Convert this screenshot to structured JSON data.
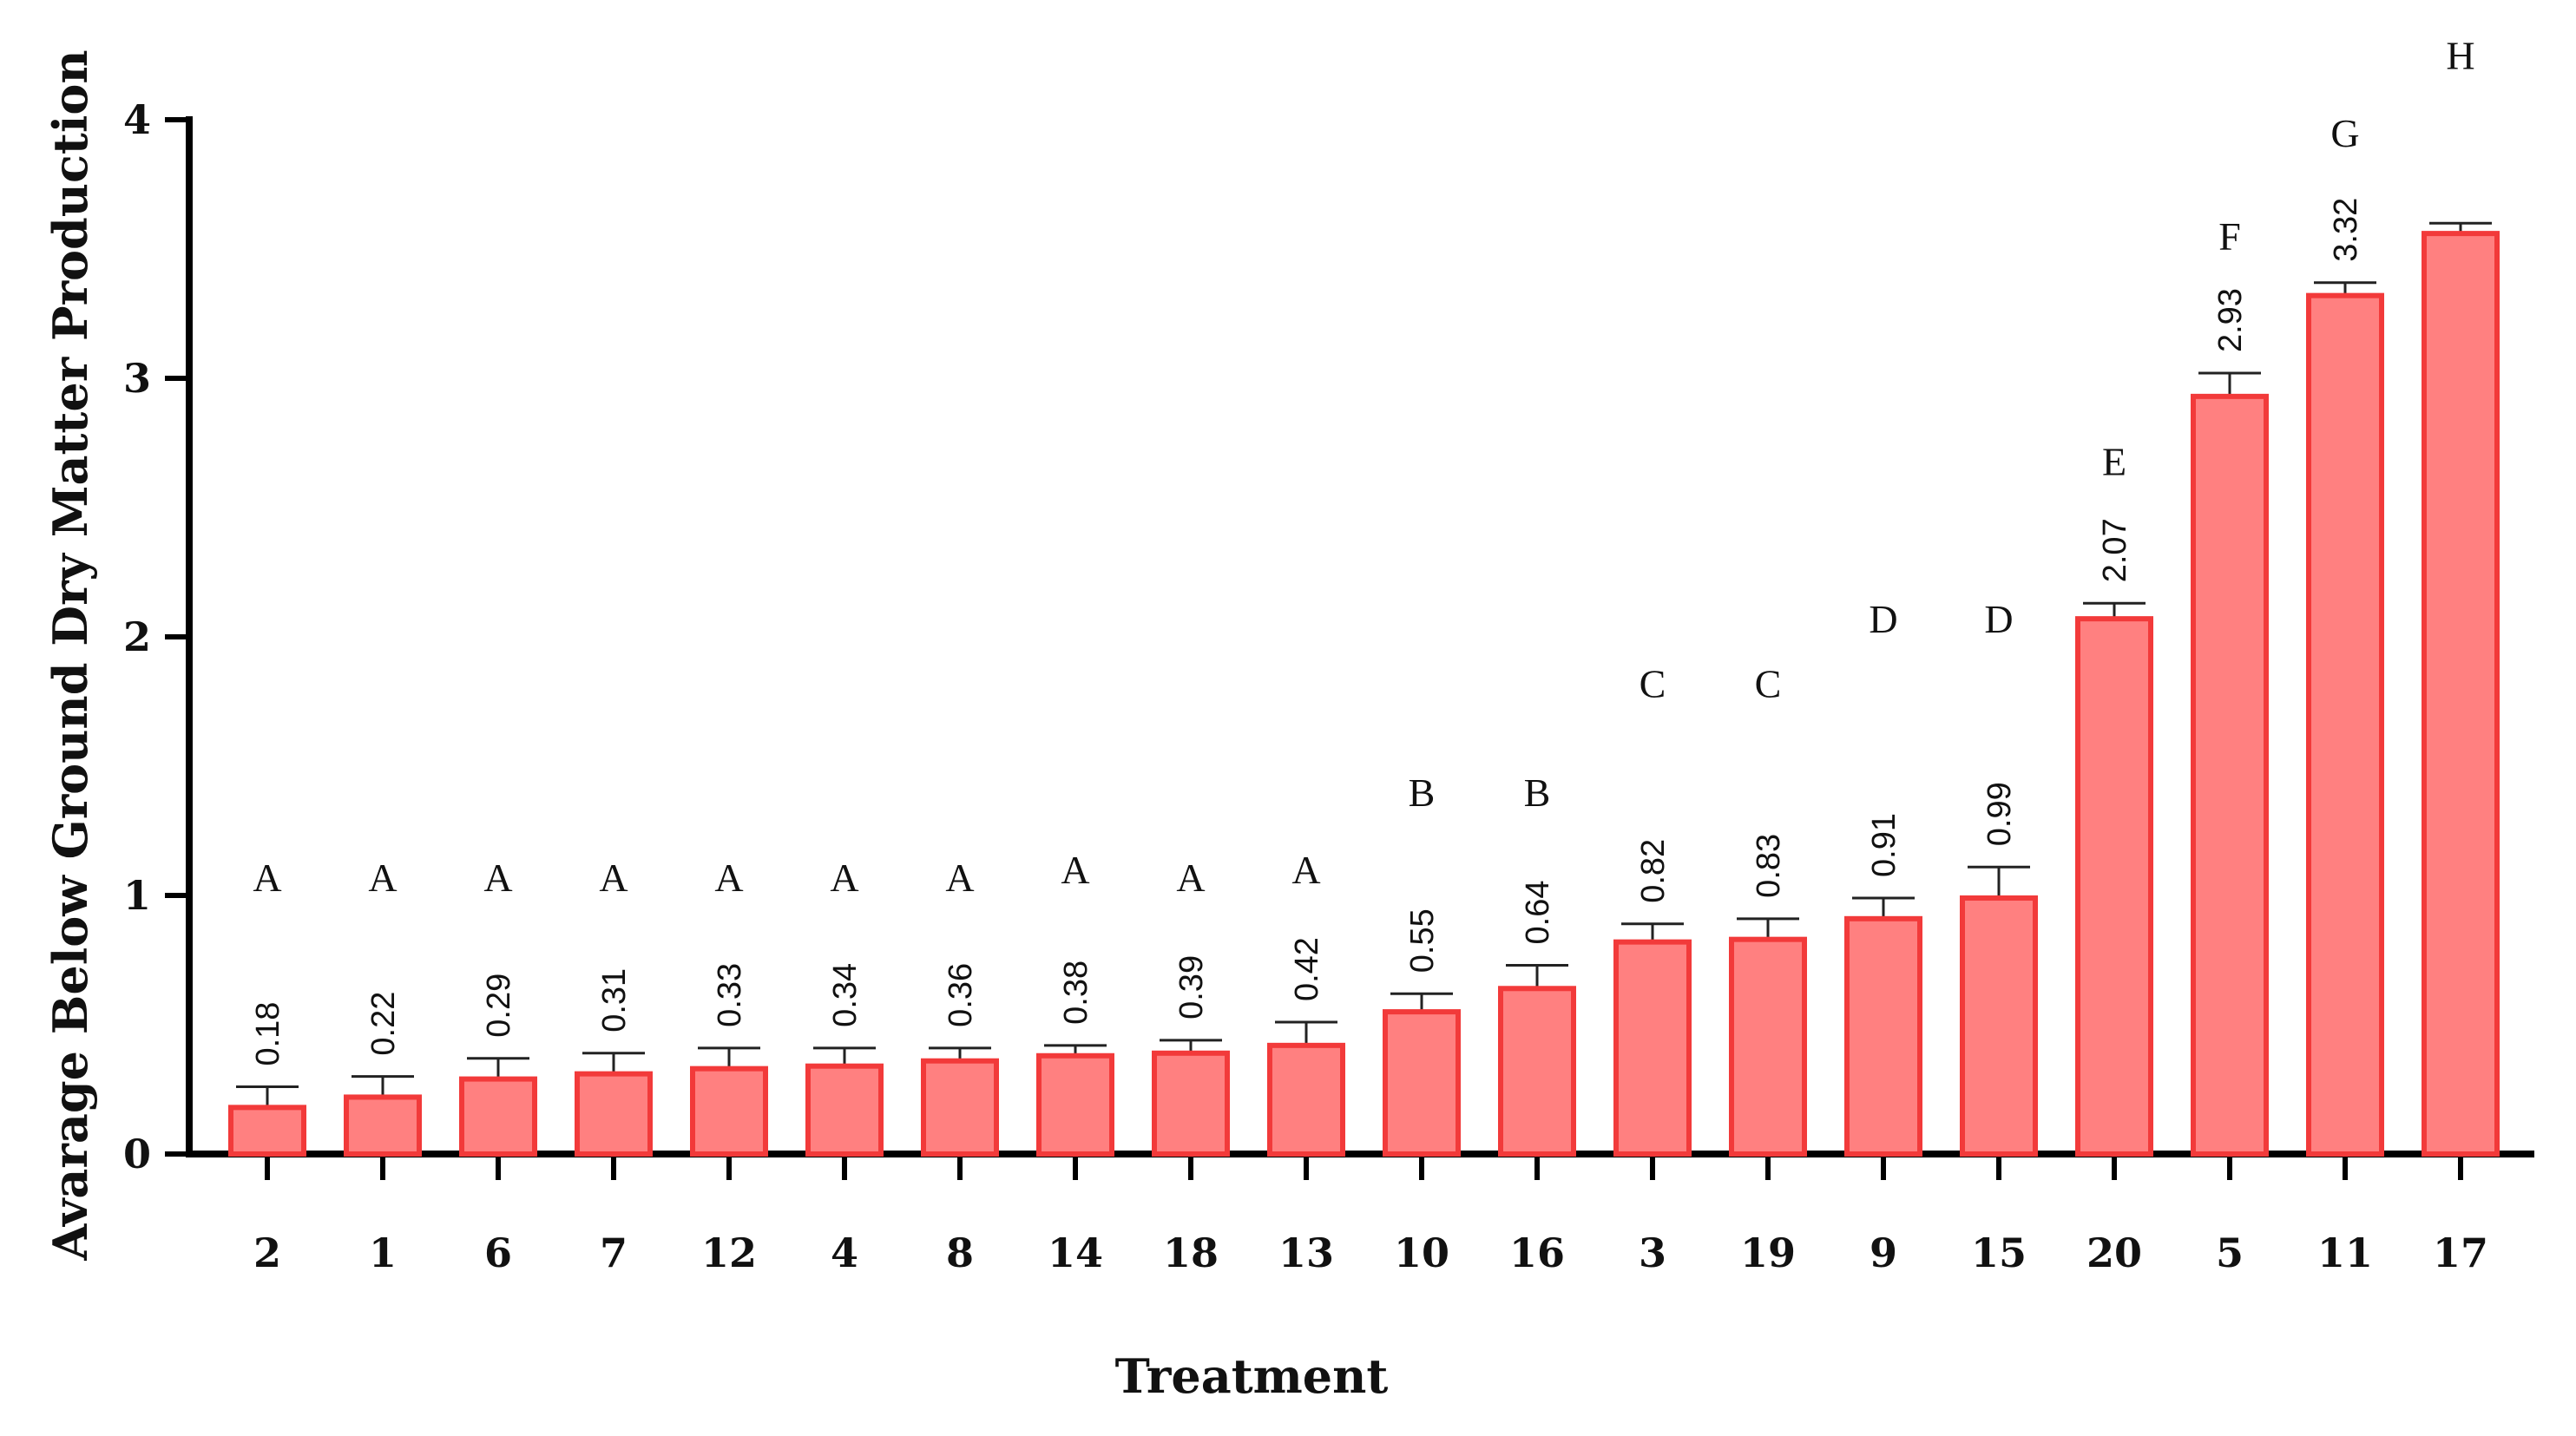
{
  "chart_data": {
    "type": "bar",
    "title": "",
    "xlabel": "Treatment",
    "ylabel": "Avarage Below Ground Dry Matter Production",
    "ylim": [
      0,
      4
    ],
    "yticks": [
      "0",
      "1",
      "2",
      "3",
      "4"
    ],
    "categories": [
      "2",
      "1",
      "6",
      "7",
      "12",
      "4",
      "8",
      "14",
      "18",
      "13",
      "10",
      "16",
      "3",
      "19",
      "9",
      "15",
      "20",
      "5",
      "11",
      "17"
    ],
    "values": [
      0.18,
      0.22,
      0.29,
      0.31,
      0.33,
      0.34,
      0.36,
      0.38,
      0.39,
      0.42,
      0.55,
      0.64,
      0.82,
      0.83,
      0.91,
      0.99,
      2.07,
      2.93,
      3.32,
      3.56
    ],
    "value_labels": [
      "0.18",
      "0.22",
      "0.29",
      "0.31",
      "0.33",
      "0.34",
      "0.36",
      "0.38",
      "0.39",
      "0.42",
      "0.55",
      "0.64",
      "0.82",
      "0.83",
      "0.91",
      "0.99",
      "2.07",
      "2.93",
      "3.32",
      ""
    ],
    "error_upper": [
      0.26,
      0.3,
      0.37,
      0.39,
      0.41,
      0.41,
      0.41,
      0.42,
      0.44,
      0.51,
      0.62,
      0.73,
      0.89,
      0.91,
      0.99,
      1.11,
      2.13,
      3.02,
      3.37,
      3.6
    ],
    "group_letters": [
      "A",
      "A",
      "A",
      "A",
      "A",
      "A",
      "A",
      "A",
      "A",
      "A",
      "B",
      "B",
      "C",
      "C",
      "D",
      "D",
      "E",
      "F",
      "G",
      "H"
    ],
    "letter_y": [
      1.07,
      1.07,
      1.07,
      1.07,
      1.07,
      1.07,
      1.07,
      1.1,
      1.07,
      1.1,
      1.4,
      1.4,
      1.82,
      1.82,
      2.07,
      2.07,
      2.68,
      3.55,
      3.95,
      4.25
    ],
    "grid": false,
    "colors": {
      "bar_fill": "#ff8080",
      "bar_stroke": "#f23a3a",
      "text": "#111111"
    }
  }
}
